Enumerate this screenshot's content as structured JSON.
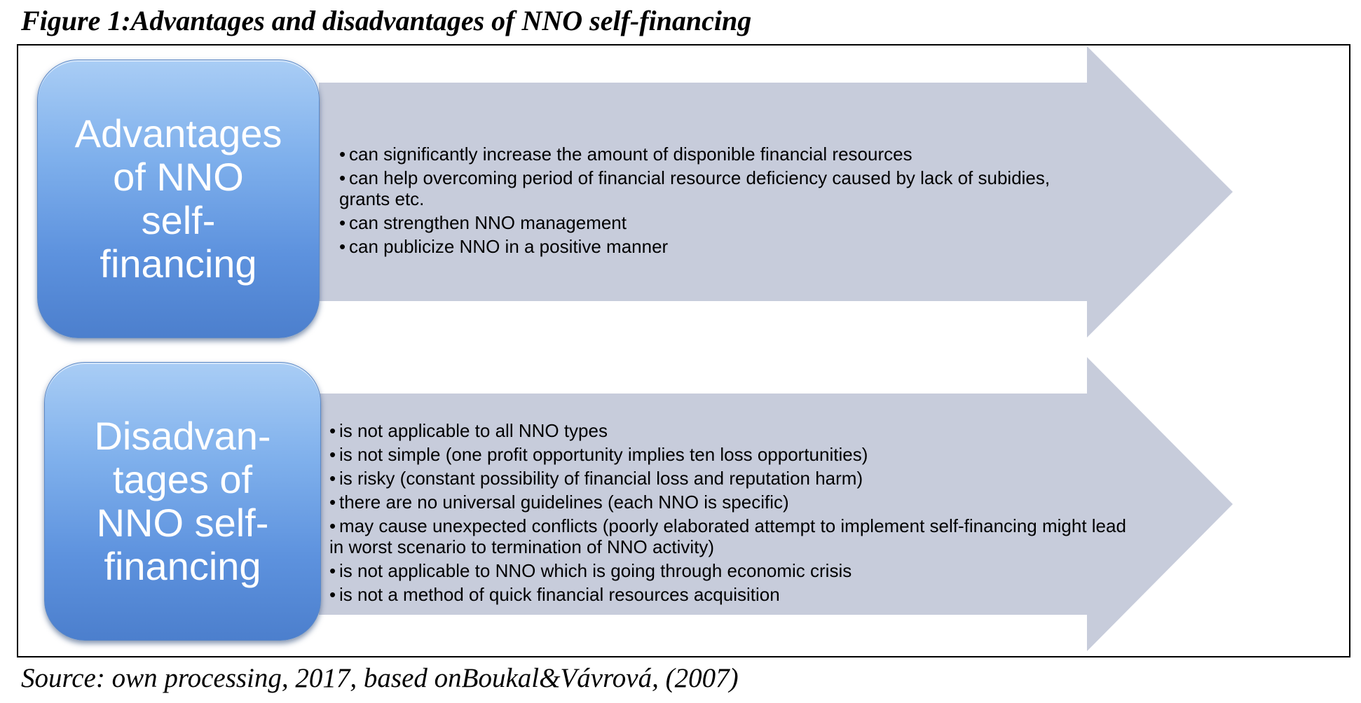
{
  "figure_title": "Figure 1:Advantages and disadvantages of NNO self-financing",
  "colors": {
    "arrow_fill": "#c7ccdb",
    "label_gradient_top": "#a9cdf5",
    "label_gradient_bottom": "#4c7fcd",
    "label_text": "#ffffff"
  },
  "advantages": {
    "label_lines": [
      "Advantages",
      "of NNO",
      "self-",
      "financing"
    ],
    "items": [
      "can significantly increase the amount of disponible financial resources",
      "can help overcoming period of financial resource deficiency caused by lack of subidies, grants etc.",
      "can strengthen NNO management",
      "can publicize NNO in a positive manner"
    ]
  },
  "disadvantages": {
    "label_lines": [
      "Disadvan-",
      "tages of",
      "NNO self-",
      "financing"
    ],
    "items": [
      "is not applicable to all NNO types",
      "is not simple (one profit opportunity implies ten loss opportunities)",
      "is risky (constant possibility of financial loss and reputation harm)",
      "there are no universal guidelines (each NNO is specific)",
      "may cause unexpected conflicts (poorly elaborated attempt  to implement self-financing might lead in worst scenario to termination of NNO activity)",
      "is not applicable to NNO which is going through economic crisis",
      "is not a method of quick financial resources acquisition"
    ]
  },
  "source": "Source: own processing, 2017, based onBoukal&Vávrová, (2007)"
}
